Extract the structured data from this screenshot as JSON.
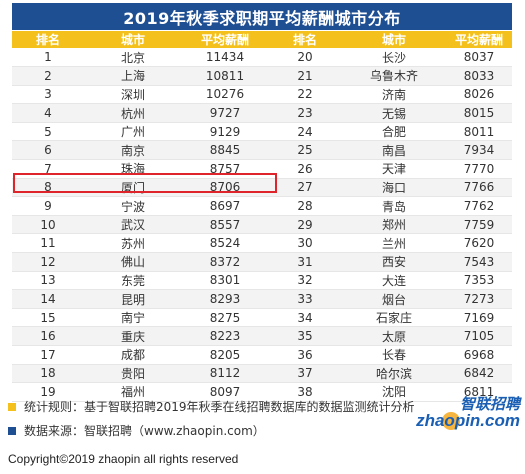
{
  "title": "2019年秋季求职期平均薪酬城市分布",
  "headers": [
    "排名",
    "城市",
    "平均薪酬",
    "排名",
    "城市",
    "平均薪酬"
  ],
  "rows": [
    [
      "1",
      "北京",
      "11434",
      "20",
      "长沙",
      "8037"
    ],
    [
      "2",
      "上海",
      "10811",
      "21",
      "乌鲁木齐",
      "8033"
    ],
    [
      "3",
      "深圳",
      "10276",
      "22",
      "济南",
      "8026"
    ],
    [
      "4",
      "杭州",
      "9727",
      "23",
      "无锡",
      "8015"
    ],
    [
      "5",
      "广州",
      "9129",
      "24",
      "合肥",
      "8011"
    ],
    [
      "6",
      "南京",
      "8845",
      "25",
      "南昌",
      "7934"
    ],
    [
      "7",
      "珠海",
      "8757",
      "26",
      "天津",
      "7770"
    ],
    [
      "8",
      "厦门",
      "8706",
      "27",
      "海口",
      "7766"
    ],
    [
      "9",
      "宁波",
      "8697",
      "28",
      "青岛",
      "7762"
    ],
    [
      "10",
      "武汉",
      "8557",
      "29",
      "郑州",
      "7759"
    ],
    [
      "11",
      "苏州",
      "8524",
      "30",
      "兰州",
      "7620"
    ],
    [
      "12",
      "佛山",
      "8372",
      "31",
      "西安",
      "7543"
    ],
    [
      "13",
      "东莞",
      "8301",
      "32",
      "大连",
      "7353"
    ],
    [
      "14",
      "昆明",
      "8293",
      "33",
      "烟台",
      "7273"
    ],
    [
      "15",
      "南宁",
      "8275",
      "34",
      "石家庄",
      "7169"
    ],
    [
      "16",
      "重庆",
      "8223",
      "35",
      "太原",
      "7105"
    ],
    [
      "17",
      "成都",
      "8205",
      "36",
      "长春",
      "6968"
    ],
    [
      "18",
      "贵阳",
      "8112",
      "37",
      "哈尔滨",
      "6842"
    ],
    [
      "19",
      "福州",
      "8097",
      "38",
      "沈阳",
      "6811"
    ]
  ],
  "highlighted_row": "8",
  "notes": {
    "rule": "统计规则：基于智联招聘2019年秋季在线招聘数据库的数据监测统计分析",
    "source": "数据来源：智联招聘（www.zhaopin.com）"
  },
  "logo": {
    "cn": "智联招聘",
    "en": "zhaopin.com"
  },
  "copyright": "Copyright©2019 zhaopin all rights reserved",
  "colors": {
    "title_bg": "#1f4f93",
    "header_bg": "#f4c11c",
    "highlight": "#e0242b",
    "note_square_1": "#f4c11c",
    "note_square_2": "#1f4f93",
    "logo": "#1a5fb4"
  }
}
